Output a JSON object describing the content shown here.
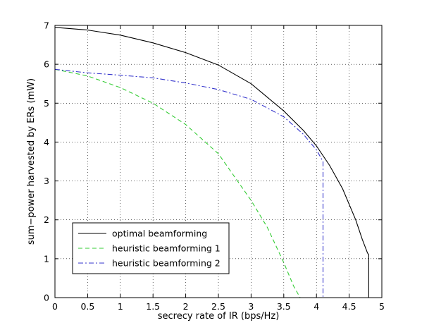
{
  "chart_data": {
    "type": "line",
    "title": "",
    "xlabel": "secrecy rate of IR (bps/Hz)",
    "ylabel": "sum−power harvested by ERs (mW)",
    "xlim": [
      0,
      5
    ],
    "ylim": [
      0,
      7
    ],
    "xticks": [
      0,
      0.5,
      1,
      1.5,
      2,
      2.5,
      3,
      3.5,
      4,
      4.5,
      5
    ],
    "xtick_labels": [
      "0",
      "0.5",
      "1",
      "1.5",
      "2",
      "2.5",
      "3",
      "3.5",
      "4",
      "4.5",
      "5"
    ],
    "yticks": [
      0,
      1,
      2,
      3,
      4,
      5,
      6,
      7
    ],
    "ytick_labels": [
      "0",
      "1",
      "2",
      "3",
      "4",
      "5",
      "6",
      "7"
    ],
    "grid": true,
    "legend_position": "bottom-left",
    "series": [
      {
        "name": "optimal beamforming",
        "color": "#000000",
        "dash": "solid",
        "x": [
          0,
          0.5,
          1.0,
          1.5,
          2.0,
          2.5,
          3.0,
          3.5,
          3.8,
          4.0,
          4.2,
          4.4,
          4.6,
          4.7,
          4.78,
          4.8,
          4.8
        ],
        "y": [
          6.95,
          6.88,
          6.75,
          6.55,
          6.3,
          5.98,
          5.5,
          4.8,
          4.3,
          3.9,
          3.4,
          2.8,
          2.0,
          1.5,
          1.15,
          1.1,
          0
        ]
      },
      {
        "name": "heuristic beamforming 1",
        "color": "#33cc33",
        "dash": "dashed",
        "x": [
          0,
          0.5,
          1.0,
          1.5,
          2.0,
          2.5,
          3.0,
          3.25,
          3.5,
          3.65,
          3.75
        ],
        "y": [
          5.87,
          5.7,
          5.4,
          5.0,
          4.45,
          3.7,
          2.5,
          1.8,
          0.9,
          0.3,
          0
        ]
      },
      {
        "name": "heuristic beamforming 2",
        "color": "#3333cc",
        "dash": "dashdot",
        "x": [
          0,
          0.5,
          1.0,
          1.5,
          2.0,
          2.5,
          3.0,
          3.5,
          3.8,
          4.0,
          4.1,
          4.1
        ],
        "y": [
          5.87,
          5.78,
          5.72,
          5.65,
          5.52,
          5.35,
          5.1,
          4.65,
          4.2,
          3.8,
          3.5,
          0
        ]
      }
    ]
  }
}
